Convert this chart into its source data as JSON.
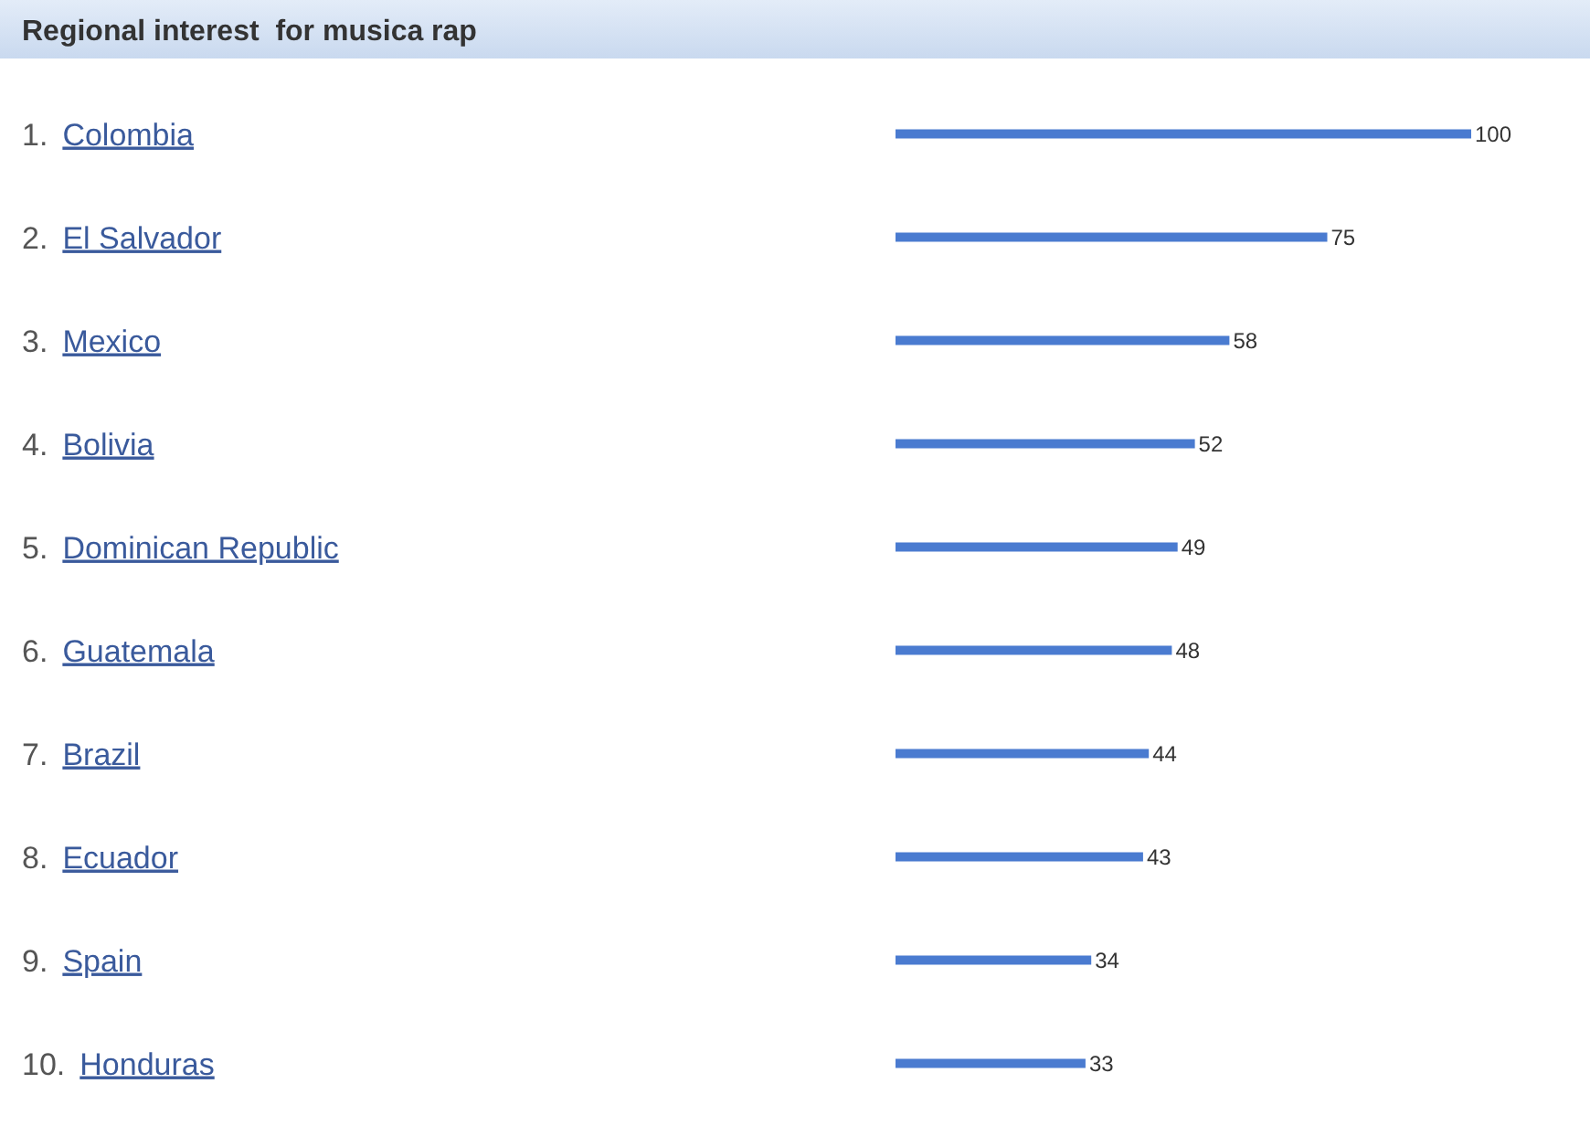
{
  "chart_data": {
    "type": "bar",
    "orientation": "horizontal",
    "title": "Regional interest  for musica rap",
    "categories": [
      "1. Colombia",
      "2. El Salvador",
      "3. Mexico",
      "4. Bolivia",
      "5. Dominican Republic",
      "6. Guatemala",
      "7. Brazil",
      "8. Ecuador",
      "9. Spain",
      "10. Honduras"
    ],
    "values": [
      100,
      75,
      58,
      52,
      49,
      48,
      44,
      43,
      34,
      33
    ],
    "color": "#4a7bd0",
    "data_labels": true
  }
}
